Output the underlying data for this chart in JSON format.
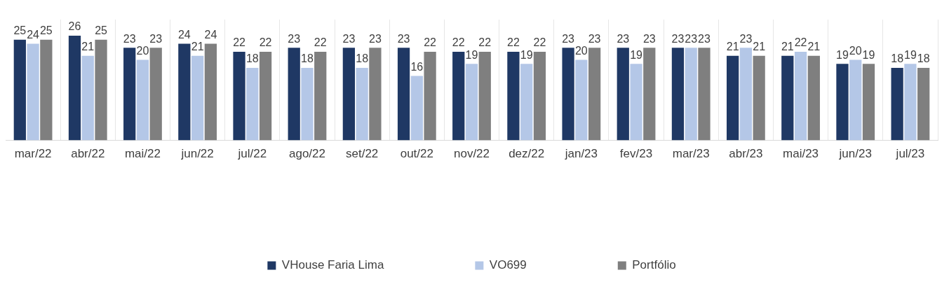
{
  "chart_data": {
    "type": "bar",
    "categories": [
      "mar/22",
      "abr/22",
      "mai/22",
      "jun/22",
      "jul/22",
      "ago/22",
      "set/22",
      "out/22",
      "nov/22",
      "dez/22",
      "jan/23",
      "fev/23",
      "mar/23",
      "abr/23",
      "mai/23",
      "jun/23",
      "jul/23"
    ],
    "series": [
      {
        "name": "VHouse Faria Lima",
        "color": "#1f3864",
        "values": [
          25,
          26,
          23,
          24,
          22,
          23,
          23,
          23,
          22,
          22,
          23,
          23,
          23,
          21,
          21,
          19,
          18
        ]
      },
      {
        "name": "VO699",
        "color": "#b4c7e7",
        "values": [
          24,
          21,
          20,
          21,
          18,
          18,
          18,
          16,
          19,
          19,
          20,
          19,
          23,
          23,
          22,
          20,
          19
        ]
      },
      {
        "name": "Portfólio",
        "color": "#7f7f7f",
        "values": [
          25,
          25,
          23,
          24,
          22,
          22,
          23,
          22,
          22,
          22,
          23,
          23,
          23,
          21,
          21,
          19,
          18
        ]
      }
    ],
    "data_labels": true,
    "grid": "x",
    "legend": "bottom"
  }
}
